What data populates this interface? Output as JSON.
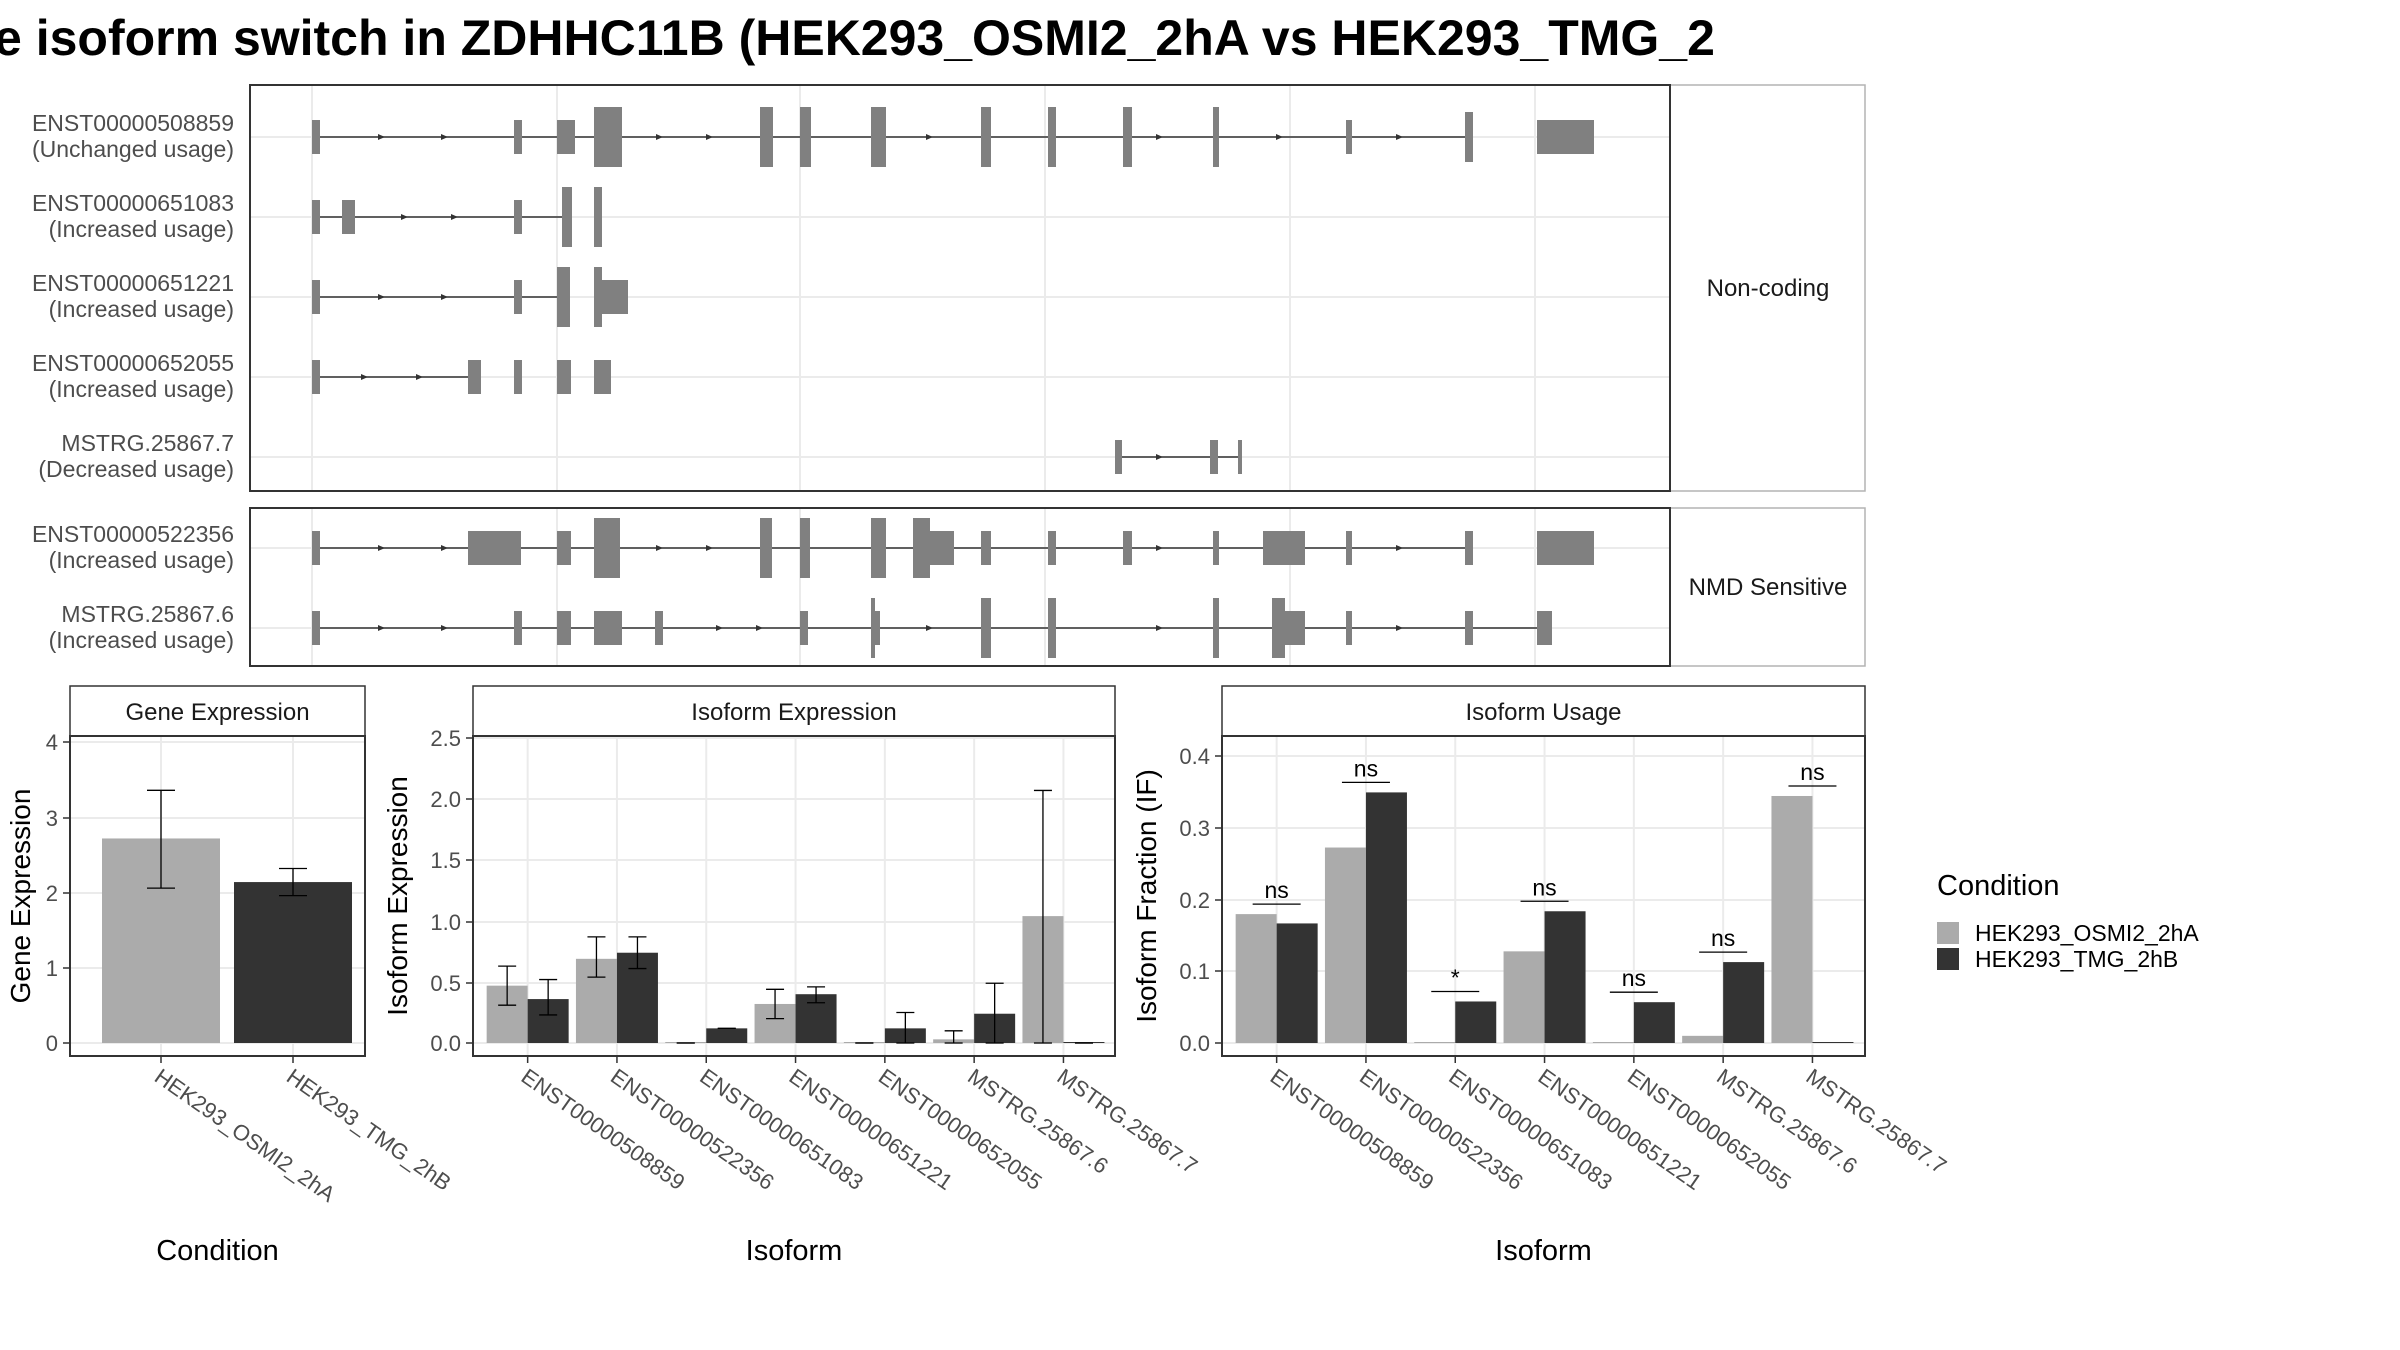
{
  "title": "e isoform switch in ZDHHC11B (HEK293_OSMI2_2hA vs HEK293_TMG_2",
  "colors": {
    "condition_a": "#ABABAB",
    "condition_b": "#333333",
    "gene_model": "#808080",
    "grid": "#EBEBEB",
    "strip": "#FFFFFF"
  },
  "structure": {
    "facets": [
      "Non-coding",
      "NMD Sensitive"
    ],
    "isoforms": [
      {
        "id": "ENST00000508859",
        "usage": "(Unchanged usage)",
        "facet": "Non-coding"
      },
      {
        "id": "ENST00000651083",
        "usage": "(Increased usage)",
        "facet": "Non-coding"
      },
      {
        "id": "ENST00000651221",
        "usage": "(Increased usage)",
        "facet": "Non-coding"
      },
      {
        "id": "ENST00000652055",
        "usage": "(Increased usage)",
        "facet": "Non-coding"
      },
      {
        "id": "MSTRG.25867.7",
        "usage": "(Decreased usage)",
        "facet": "Non-coding"
      },
      {
        "id": "ENST00000522356",
        "usage": "(Increased usage)",
        "facet": "NMD Sensitive"
      },
      {
        "id": "MSTRG.25867.6",
        "usage": "(Increased usage)",
        "facet": "NMD Sensitive"
      }
    ]
  },
  "legend": {
    "title": "Condition",
    "items": [
      "HEK293_OSMI2_2hA",
      "HEK293_TMG_2hB"
    ]
  },
  "chart_data": [
    {
      "type": "bar",
      "title": "Gene Expression",
      "xlabel": "Condition",
      "ylabel": "Gene Expression",
      "ylim": [
        0,
        4.2
      ],
      "yticks": [
        "0",
        "1",
        "2",
        "3",
        "4"
      ],
      "categories": [
        "HEK293_OSMI2_2hA",
        "HEK293_TMG_2hB"
      ],
      "values": [
        2.72,
        2.14
      ],
      "err_low": [
        2.06,
        1.96
      ],
      "err_high": [
        3.36,
        2.32
      ]
    },
    {
      "type": "bar",
      "title": "Isoform Expression",
      "xlabel": "Isoform",
      "ylabel": "Isoform Expression",
      "ylim": [
        0,
        2.5
      ],
      "yticks": [
        "0.0",
        "0.5",
        "1.0",
        "1.5",
        "2.0",
        "2.5"
      ],
      "categories": [
        "ENST00000508859",
        "ENST00000522356",
        "ENST00000651083",
        "ENST00000651221",
        "ENST00000652055",
        "MSTRG.25867.6",
        "MSTRG.25867.7"
      ],
      "series": [
        {
          "name": "HEK293_OSMI2_2hA",
          "values": [
            0.47,
            0.69,
            0.0,
            0.32,
            0.0,
            0.03,
            1.04
          ],
          "err_low": [
            0.31,
            0.54,
            0.0,
            0.2,
            0.0,
            0.0,
            0.0
          ],
          "err_high": [
            0.63,
            0.87,
            0.0,
            0.44,
            0.0,
            0.1,
            2.07
          ]
        },
        {
          "name": "HEK293_TMG_2hB",
          "values": [
            0.36,
            0.74,
            0.12,
            0.4,
            0.12,
            0.24,
            0.0
          ],
          "err_low": [
            0.23,
            0.61,
            0.12,
            0.33,
            0.0,
            0.0,
            0.0
          ],
          "err_high": [
            0.52,
            0.87,
            0.12,
            0.46,
            0.25,
            0.49,
            0.0
          ]
        }
      ]
    },
    {
      "type": "bar",
      "title": "Isoform Usage",
      "xlabel": "Isoform",
      "ylabel": "Isoform Fraction (IF)",
      "ylim": [
        0,
        0.42
      ],
      "yticks": [
        "0.0",
        "0.1",
        "0.2",
        "0.3",
        "0.4"
      ],
      "categories": [
        "ENST00000508859",
        "ENST00000522356",
        "ENST00000651083",
        "ENST00000651221",
        "ENST00000652055",
        "MSTRG.25867.6",
        "MSTRG.25867.7"
      ],
      "series": [
        {
          "name": "HEK293_OSMI2_2hA",
          "values": [
            0.18,
            0.273,
            0.0,
            0.128,
            0.0,
            0.01,
            0.345
          ]
        },
        {
          "name": "HEK293_TMG_2hB",
          "values": [
            0.167,
            0.35,
            0.058,
            0.184,
            0.057,
            0.113,
            0.0
          ]
        }
      ],
      "significance": [
        "ns",
        "ns",
        "*",
        "ns",
        "ns",
        "ns",
        "ns"
      ]
    }
  ]
}
